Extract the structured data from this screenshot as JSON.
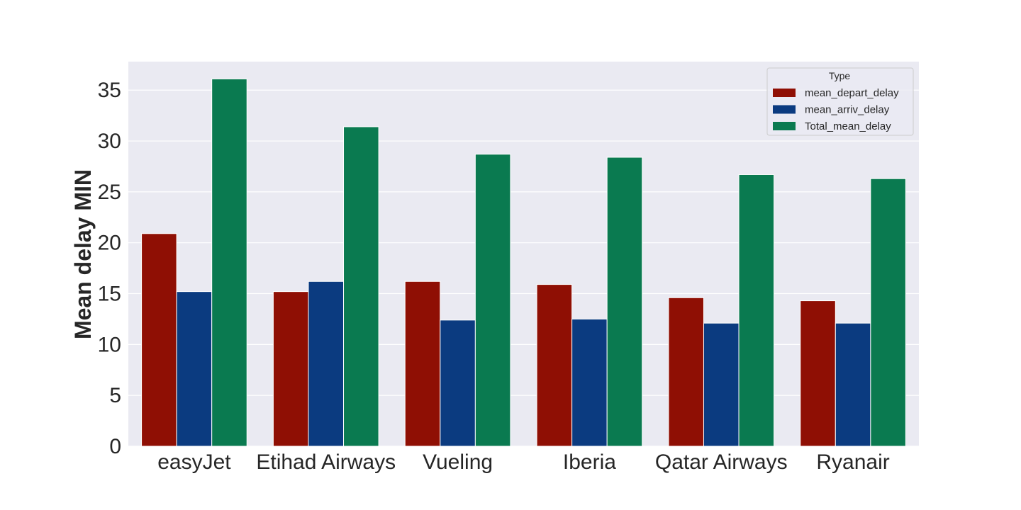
{
  "chart_data": {
    "type": "bar",
    "title": "",
    "xlabel": "",
    "ylabel": "Mean delay MIN",
    "ylim": [
      0,
      37.8
    ],
    "yticks": [
      0,
      5,
      10,
      15,
      20,
      25,
      30,
      35
    ],
    "grid": true,
    "legend_position": "top-right",
    "legend_title": "Type",
    "categories": [
      "easyJet",
      "Etihad Airways",
      "Vueling",
      "Iberia",
      "Qatar Airways",
      "Ryanair"
    ],
    "series": [
      {
        "name": "mean_depart_delay",
        "color": "#8f0f04",
        "values": [
          20.9,
          15.2,
          16.2,
          15.9,
          14.6,
          14.3
        ]
      },
      {
        "name": "mean_arriv_delay",
        "color": "#0b3b80",
        "values": [
          15.2,
          16.2,
          12.4,
          12.5,
          12.1,
          12.1
        ]
      },
      {
        "name": "Total_mean_delay",
        "color": "#0a7a50",
        "values": [
          36.1,
          31.4,
          28.7,
          28.4,
          26.7,
          26.3
        ]
      }
    ],
    "background_color": "#eaeaf2",
    "grid_color": "#ffffff"
  }
}
